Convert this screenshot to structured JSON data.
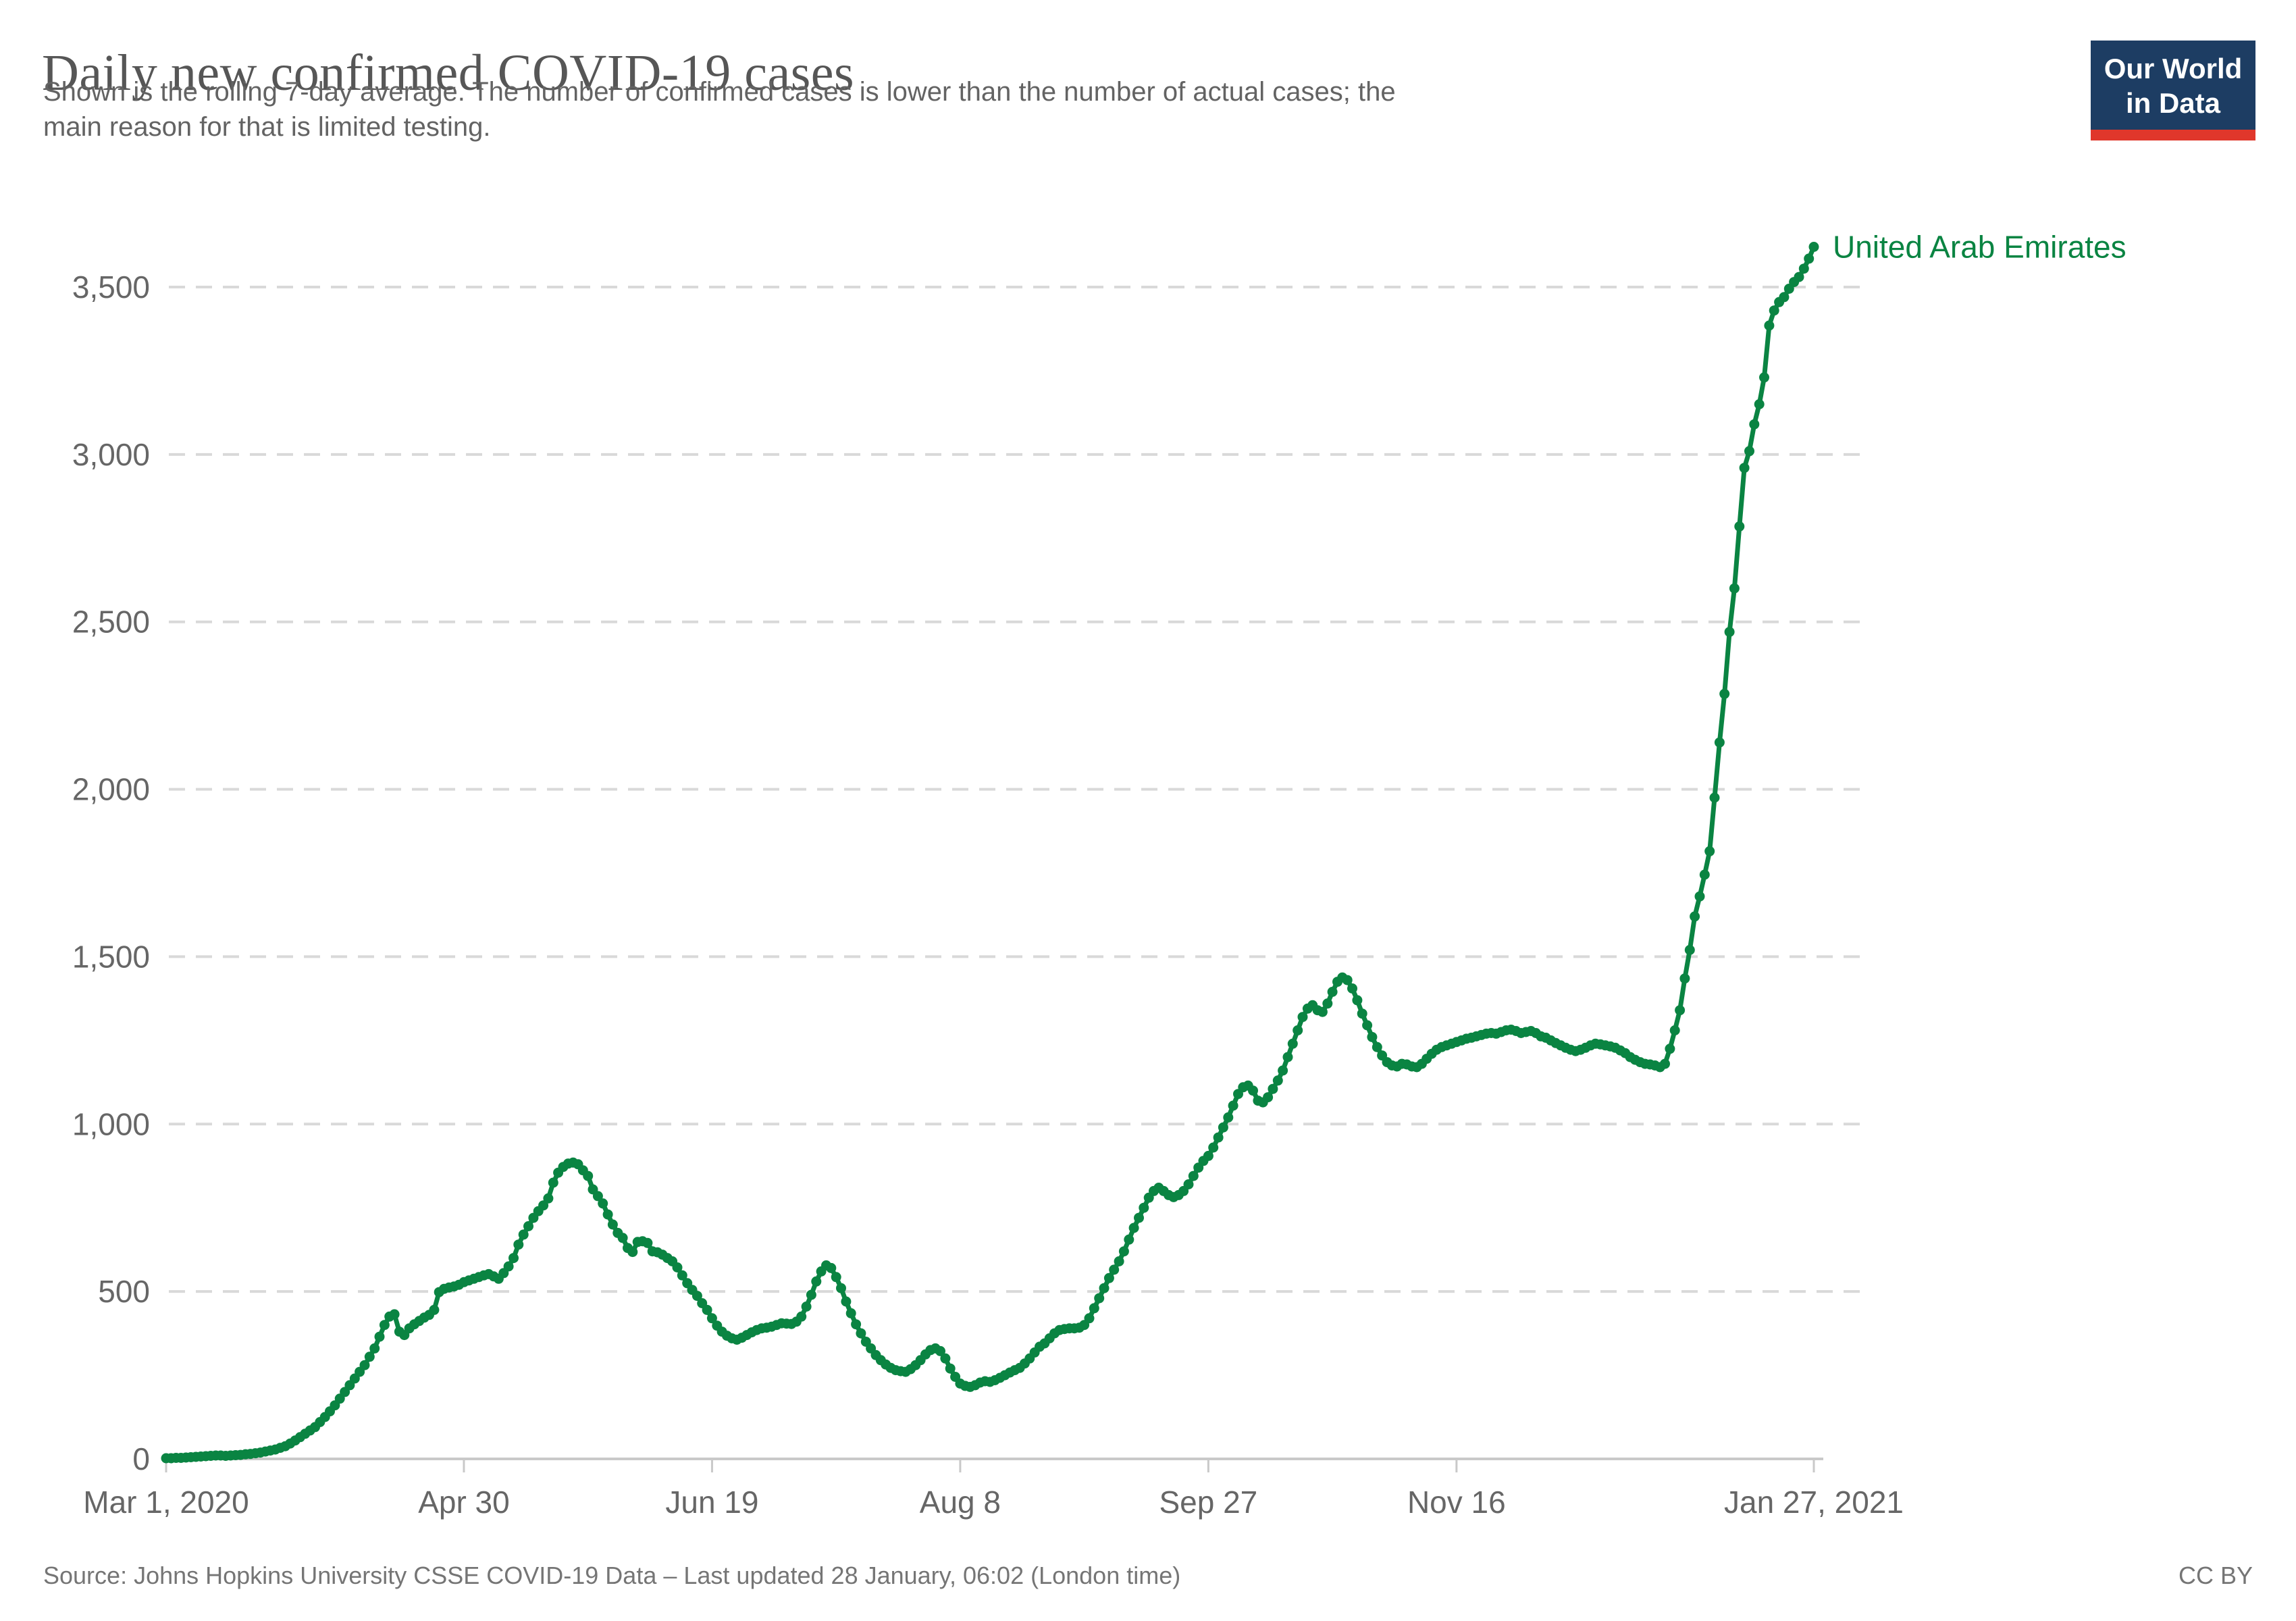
{
  "header": {
    "title": "Daily new confirmed COVID-19 cases",
    "subtitle_lines": [
      "Shown is the rolling 7-day average. The number of confirmed cases is lower than the number of actual cases; the",
      "main reason for that is limited testing."
    ]
  },
  "logo": {
    "line1": "Our World",
    "line2": "in Data",
    "bg_color": "#1d3d63",
    "bar_color": "#e0372b"
  },
  "footer": {
    "source": "Source: Johns Hopkins University CSSE COVID-19 Data – Last updated 28 January, 06:02 (London time)",
    "license": "CC BY"
  },
  "colors": {
    "series_green": "#0a8442",
    "grid": "#d9d9d9",
    "axis": "#c9c9c9",
    "tick_text": "#666666"
  },
  "chart_data": {
    "type": "line",
    "title": "Daily new confirmed COVID-19 cases",
    "xlabel": "",
    "ylabel": "",
    "ylim": [
      0,
      3700
    ],
    "grid": "horizontal-dashed",
    "legend_position": "end-of-line-label",
    "x_ticks": [
      {
        "label": "Mar 1, 2020",
        "day": 0
      },
      {
        "label": "Apr 30",
        "day": 60
      },
      {
        "label": "Jun 19",
        "day": 110
      },
      {
        "label": "Aug 8",
        "day": 160
      },
      {
        "label": "Sep 27",
        "day": 210
      },
      {
        "label": "Nov 16",
        "day": 260
      },
      {
        "label": "Jan 27, 2021",
        "day": 332
      }
    ],
    "y_ticks": [
      {
        "label": "0",
        "value": 0
      },
      {
        "label": "500",
        "value": 500
      },
      {
        "label": "1,000",
        "value": 1000
      },
      {
        "label": "1,500",
        "value": 1500
      },
      {
        "label": "2,000",
        "value": 2000
      },
      {
        "label": "2,500",
        "value": 2500
      },
      {
        "label": "3,000",
        "value": 3000
      },
      {
        "label": "3,500",
        "value": 3500
      }
    ],
    "series": [
      {
        "name": "United Arab Emirates",
        "color": "#0a8442",
        "start_date": "2020-03-01",
        "end_date": "2021-01-27",
        "frequency": "daily (7-day rolling average)",
        "values": [
          2,
          2,
          3,
          3,
          4,
          5,
          6,
          7,
          8,
          9,
          10,
          10,
          9,
          10,
          11,
          12,
          14,
          15,
          17,
          19,
          22,
          25,
          28,
          33,
          38,
          46,
          55,
          65,
          75,
          85,
          95,
          110,
          125,
          142,
          160,
          180,
          200,
          220,
          240,
          260,
          280,
          305,
          330,
          365,
          400,
          425,
          432,
          380,
          370,
          390,
          402,
          412,
          422,
          430,
          445,
          498,
          508,
          512,
          515,
          520,
          528,
          533,
          538,
          543,
          548,
          552,
          545,
          538,
          555,
          575,
          600,
          640,
          670,
          695,
          720,
          740,
          757,
          778,
          825,
          855,
          872,
          882,
          885,
          880,
          862,
          845,
          805,
          785,
          763,
          730,
          700,
          675,
          660,
          630,
          618,
          648,
          650,
          645,
          620,
          617,
          610,
          600,
          590,
          572,
          548,
          525,
          505,
          487,
          465,
          445,
          420,
          398,
          380,
          368,
          360,
          356,
          362,
          370,
          378,
          385,
          390,
          392,
          395,
          400,
          405,
          404,
          403,
          410,
          425,
          455,
          490,
          530,
          560,
          578,
          570,
          543,
          510,
          470,
          435,
          402,
          375,
          350,
          330,
          310,
          295,
          282,
          272,
          265,
          262,
          260,
          268,
          280,
          295,
          312,
          325,
          330,
          322,
          300,
          270,
          245,
          225,
          218,
          215,
          220,
          228,
          232,
          230,
          235,
          242,
          250,
          258,
          265,
          272,
          285,
          300,
          318,
          335,
          345,
          360,
          375,
          385,
          388,
          390,
          390,
          392,
          400,
          420,
          450,
          480,
          510,
          540,
          565,
          590,
          620,
          655,
          690,
          720,
          750,
          780,
          800,
          810,
          800,
          788,
          782,
          788,
          800,
          820,
          845,
          870,
          890,
          905,
          930,
          960,
          990,
          1020,
          1055,
          1090,
          1110,
          1115,
          1100,
          1070,
          1065,
          1080,
          1105,
          1130,
          1160,
          1200,
          1240,
          1280,
          1320,
          1345,
          1355,
          1340,
          1335,
          1360,
          1395,
          1425,
          1438,
          1430,
          1405,
          1370,
          1330,
          1295,
          1260,
          1230,
          1205,
          1185,
          1175,
          1172,
          1180,
          1178,
          1172,
          1170,
          1180,
          1195,
          1210,
          1222,
          1230,
          1235,
          1240,
          1245,
          1250,
          1255,
          1258,
          1262,
          1266,
          1270,
          1272,
          1270,
          1275,
          1280,
          1282,
          1278,
          1272,
          1275,
          1278,
          1272,
          1262,
          1258,
          1250,
          1242,
          1235,
          1228,
          1222,
          1218,
          1222,
          1228,
          1235,
          1240,
          1238,
          1235,
          1232,
          1228,
          1220,
          1212,
          1200,
          1192,
          1185,
          1180,
          1178,
          1175,
          1170,
          1180,
          1225,
          1280,
          1340,
          1435,
          1520,
          1620,
          1680,
          1745,
          1815,
          1975,
          2140,
          2285,
          2470,
          2600,
          2785,
          2960,
          3010,
          3090,
          3150,
          3230,
          3385,
          3430,
          3455,
          3470,
          3495,
          3515,
          3530,
          3555,
          3585,
          3620
        ]
      }
    ]
  }
}
